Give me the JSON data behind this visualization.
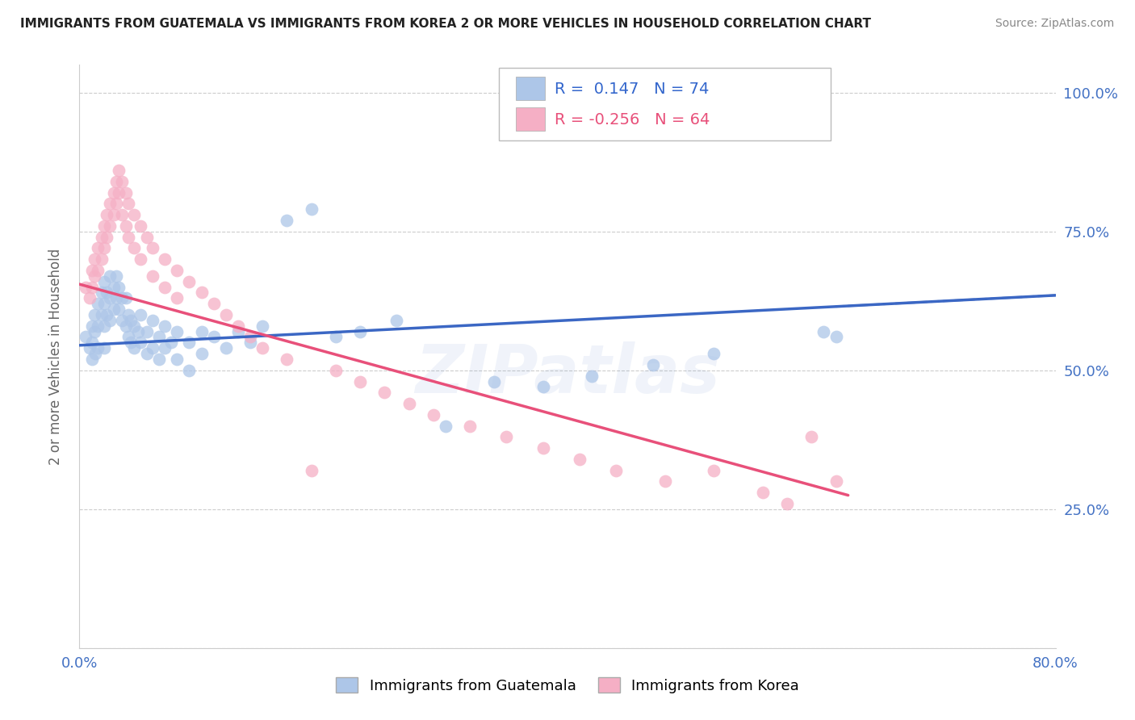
{
  "title": "IMMIGRANTS FROM GUATEMALA VS IMMIGRANTS FROM KOREA 2 OR MORE VEHICLES IN HOUSEHOLD CORRELATION CHART",
  "source": "Source: ZipAtlas.com",
  "ylabel": "2 or more Vehicles in Household",
  "x_min": 0.0,
  "x_max": 0.8,
  "y_min": 0.0,
  "y_max": 1.05,
  "guatemala_color": "#adc6e8",
  "korea_color": "#f5afc5",
  "trend_blue": "#3b67c4",
  "trend_pink": "#e8507a",
  "watermark": "ZIPatlas",
  "legend_label_guatemala": "Immigrants from Guatemala",
  "legend_label_korea": "Immigrants from Korea",
  "guat_trend_x0": 0.0,
  "guat_trend_y0": 0.545,
  "guat_trend_x1": 0.8,
  "guat_trend_y1": 0.635,
  "korea_trend_x0": 0.0,
  "korea_trend_y0": 0.655,
  "korea_trend_x1": 0.63,
  "korea_trend_y1": 0.275,
  "guat_x": [
    0.005,
    0.008,
    0.01,
    0.01,
    0.01,
    0.012,
    0.012,
    0.013,
    0.015,
    0.015,
    0.015,
    0.018,
    0.018,
    0.02,
    0.02,
    0.02,
    0.02,
    0.022,
    0.022,
    0.025,
    0.025,
    0.025,
    0.028,
    0.028,
    0.03,
    0.03,
    0.032,
    0.032,
    0.035,
    0.035,
    0.038,
    0.038,
    0.04,
    0.04,
    0.042,
    0.042,
    0.045,
    0.045,
    0.048,
    0.05,
    0.05,
    0.055,
    0.055,
    0.06,
    0.06,
    0.065,
    0.065,
    0.07,
    0.07,
    0.075,
    0.08,
    0.08,
    0.09,
    0.09,
    0.1,
    0.1,
    0.11,
    0.12,
    0.13,
    0.14,
    0.15,
    0.17,
    0.19,
    0.21,
    0.23,
    0.26,
    0.3,
    0.34,
    0.38,
    0.42,
    0.47,
    0.52,
    0.61,
    0.62
  ],
  "guat_y": [
    0.56,
    0.54,
    0.58,
    0.55,
    0.52,
    0.6,
    0.57,
    0.53,
    0.62,
    0.58,
    0.54,
    0.64,
    0.6,
    0.66,
    0.62,
    0.58,
    0.54,
    0.64,
    0.6,
    0.67,
    0.63,
    0.59,
    0.65,
    0.61,
    0.67,
    0.63,
    0.65,
    0.61,
    0.63,
    0.59,
    0.63,
    0.58,
    0.6,
    0.56,
    0.59,
    0.55,
    0.58,
    0.54,
    0.57,
    0.6,
    0.55,
    0.57,
    0.53,
    0.59,
    0.54,
    0.56,
    0.52,
    0.58,
    0.54,
    0.55,
    0.57,
    0.52,
    0.55,
    0.5,
    0.57,
    0.53,
    0.56,
    0.54,
    0.57,
    0.55,
    0.58,
    0.77,
    0.79,
    0.56,
    0.57,
    0.59,
    0.4,
    0.48,
    0.47,
    0.49,
    0.51,
    0.53,
    0.57,
    0.56
  ],
  "korea_x": [
    0.005,
    0.008,
    0.01,
    0.01,
    0.012,
    0.012,
    0.015,
    0.015,
    0.018,
    0.018,
    0.02,
    0.02,
    0.022,
    0.022,
    0.025,
    0.025,
    0.028,
    0.028,
    0.03,
    0.03,
    0.032,
    0.032,
    0.035,
    0.035,
    0.038,
    0.038,
    0.04,
    0.04,
    0.045,
    0.045,
    0.05,
    0.05,
    0.055,
    0.06,
    0.06,
    0.07,
    0.07,
    0.08,
    0.08,
    0.09,
    0.1,
    0.11,
    0.12,
    0.13,
    0.14,
    0.15,
    0.17,
    0.19,
    0.21,
    0.23,
    0.25,
    0.27,
    0.29,
    0.32,
    0.35,
    0.38,
    0.41,
    0.44,
    0.48,
    0.52,
    0.56,
    0.58,
    0.6,
    0.62
  ],
  "korea_y": [
    0.65,
    0.63,
    0.68,
    0.65,
    0.7,
    0.67,
    0.72,
    0.68,
    0.74,
    0.7,
    0.76,
    0.72,
    0.78,
    0.74,
    0.8,
    0.76,
    0.82,
    0.78,
    0.84,
    0.8,
    0.86,
    0.82,
    0.84,
    0.78,
    0.82,
    0.76,
    0.8,
    0.74,
    0.78,
    0.72,
    0.76,
    0.7,
    0.74,
    0.72,
    0.67,
    0.7,
    0.65,
    0.68,
    0.63,
    0.66,
    0.64,
    0.62,
    0.6,
    0.58,
    0.56,
    0.54,
    0.52,
    0.32,
    0.5,
    0.48,
    0.46,
    0.44,
    0.42,
    0.4,
    0.38,
    0.36,
    0.34,
    0.32,
    0.3,
    0.32,
    0.28,
    0.26,
    0.38,
    0.3
  ]
}
